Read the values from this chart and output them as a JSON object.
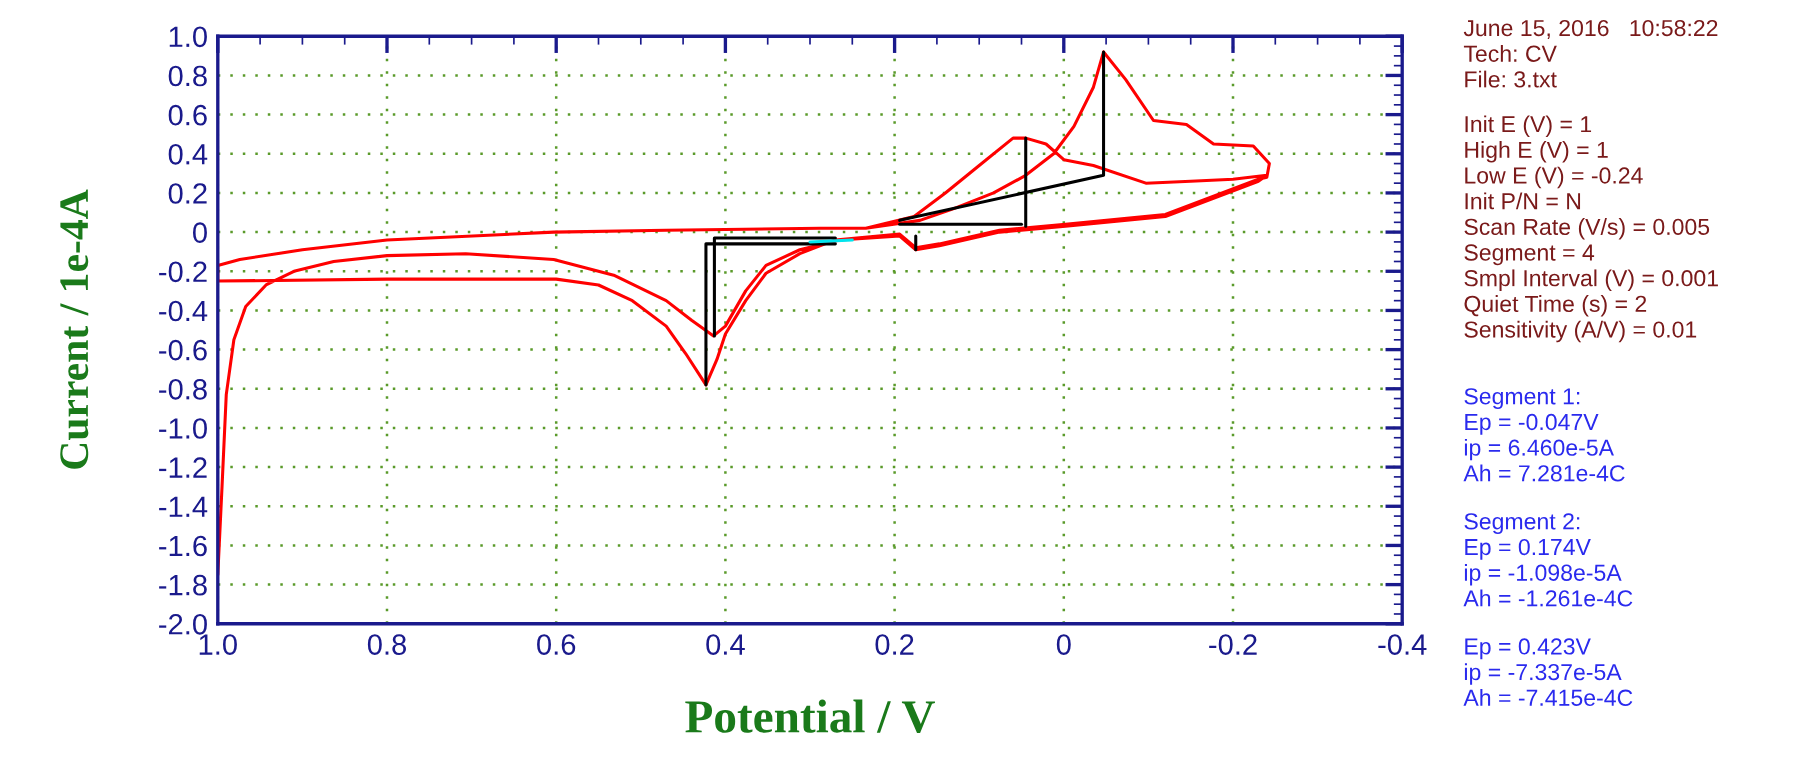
{
  "chart_data": {
    "type": "line",
    "xlabel": "Potential / V",
    "ylabel": "Current / 1e-4A",
    "xlim": [
      1.0,
      -0.4
    ],
    "ylim": [
      -2.0,
      1.0
    ],
    "xticks": [
      {
        "value": 1.0,
        "label": "1.0"
      },
      {
        "value": 0.8,
        "label": "0.8"
      },
      {
        "value": 0.6,
        "label": "0.6"
      },
      {
        "value": 0.4,
        "label": "0.4"
      },
      {
        "value": 0.2,
        "label": "0.2"
      },
      0,
      {
        "value": -0.2,
        "label": "-0.2"
      },
      {
        "value": -0.4,
        "label": "-0.4"
      }
    ],
    "yticks": [
      {
        "value": 1.0,
        "label": "1.0"
      },
      0.8,
      0.6,
      0.4,
      0.2,
      0,
      {
        "value": -0.2,
        "label": "-0.2"
      },
      {
        "value": -0.4,
        "label": "-0.4"
      },
      {
        "value": -0.6,
        "label": "-0.6"
      },
      {
        "value": -0.8,
        "label": "-0.8"
      },
      {
        "value": -1.0,
        "label": "-1.0"
      },
      {
        "value": -1.2,
        "label": "-1.2"
      },
      {
        "value": -1.4,
        "label": "-1.4"
      },
      {
        "value": -1.6,
        "label": "-1.6"
      },
      {
        "value": -1.8,
        "label": "-1.8"
      },
      {
        "value": -2.0,
        "label": "-2.0"
      }
    ],
    "grid": true,
    "line_style": "solid",
    "series": [
      {
        "color": "#ff0000",
        "x": [
          1.0,
          0.995,
          0.99,
          0.981,
          0.967,
          0.943,
          0.91,
          0.863,
          0.8,
          0.707,
          0.603,
          0.532,
          0.47,
          0.44,
          0.414,
          0.4,
          0.376,
          0.352,
          0.312,
          0.265,
          0.194,
          0.175,
          0.147,
          0.076,
          -0.002,
          -0.12,
          -0.23,
          -0.24,
          -0.2,
          -0.15,
          -0.097,
          -0.035,
          0.0,
          0.021,
          0.045,
          0.06,
          0.1,
          0.14,
          0.177,
          0.234,
          0.288,
          0.47,
          0.603,
          0.8,
          0.9,
          0.974,
          1.0,
          1.0,
          0.8,
          0.6,
          0.55,
          0.51,
          0.47,
          0.447,
          0.423,
          0.41,
          0.4,
          0.376,
          0.352,
          0.312,
          0.27,
          0.194,
          0.175,
          0.147,
          0.076,
          -0.002,
          -0.12,
          -0.23,
          -0.24,
          -0.243,
          -0.224,
          -0.177,
          -0.145,
          -0.106,
          -0.073,
          -0.047,
          -0.035,
          -0.012,
          0.012,
          0.045,
          0.083,
          0.13,
          0.17,
          0.234
        ],
        "values": [
          -1.75,
          -1.3,
          -0.83,
          -0.55,
          -0.38,
          -0.27,
          -0.2,
          -0.15,
          -0.12,
          -0.11,
          -0.14,
          -0.22,
          -0.35,
          -0.45,
          -0.53,
          -0.48,
          -0.3,
          -0.17,
          -0.09,
          -0.04,
          -0.02,
          -0.09,
          -0.07,
          0.0,
          0.03,
          0.08,
          0.26,
          0.29,
          0.27,
          0.26,
          0.25,
          0.34,
          0.37,
          0.45,
          0.48,
          0.48,
          0.34,
          0.2,
          0.08,
          0.02,
          0.02,
          0.01,
          0.0,
          -0.04,
          -0.09,
          -0.14,
          -0.17,
          -0.25,
          -0.24,
          -0.24,
          -0.27,
          -0.35,
          -0.48,
          -0.62,
          -0.78,
          -0.65,
          -0.52,
          -0.35,
          -0.21,
          -0.11,
          -0.04,
          -0.01,
          -0.08,
          -0.06,
          0.01,
          0.04,
          0.09,
          0.27,
          0.28,
          0.35,
          0.44,
          0.45,
          0.55,
          0.57,
          0.78,
          0.92,
          0.74,
          0.54,
          0.4,
          0.29,
          0.2,
          0.12,
          0.06,
          0.02
        ]
      },
      {
        "color": "#000000",
        "x": [
          0.194,
          -0.047,
          -0.047
        ],
        "values": [
          0.06,
          0.29,
          0.92
        ]
      },
      {
        "color": "#000000",
        "x": [
          0.045,
          0.045
        ],
        "values": [
          0.48,
          0.03
        ]
      },
      {
        "color": "#000000",
        "x": [
          0.194,
          0.05
        ],
        "values": [
          0.04,
          0.04
        ]
      },
      {
        "color": "#000000",
        "x": [
          0.175,
          0.175
        ],
        "values": [
          -0.09,
          -0.02
        ]
      },
      {
        "color": "#000000",
        "x": [
          0.423,
          0.423,
          0.27
        ],
        "values": [
          -0.78,
          -0.06,
          -0.06
        ]
      },
      {
        "color": "#000000",
        "x": [
          0.413,
          0.413,
          0.27
        ],
        "values": [
          -0.53,
          -0.03,
          -0.03
        ]
      },
      {
        "color": "#00e5ee",
        "x": [
          0.3,
          0.25
        ],
        "values": [
          -0.05,
          -0.04
        ]
      }
    ],
    "annotations": [
      "June 15, 2016   10:58:22\nTech: CV\nFile: 3.txt",
      "Init E (V) = 1\nHigh E (V) = 1\nLow E (V) = -0.24\nInit P/N = N\nScan Rate (V/s) = 0.005\nSegment = 4\nSmpl Interval (V) = 0.001\nQuiet Time (s) = 2\nSensitivity (A/V) = 0.01",
      "Segment 1:\nEp = -0.047V\nip = 6.460e-5A\nAh = 7.281e-4C",
      "Segment 2:\nEp = 0.174V\nip = -1.098e-5A\nAh = -1.261e-4C",
      "Ep = 0.423V\nip = -7.337e-5A\nAh = -7.415e-4C"
    ]
  }
}
